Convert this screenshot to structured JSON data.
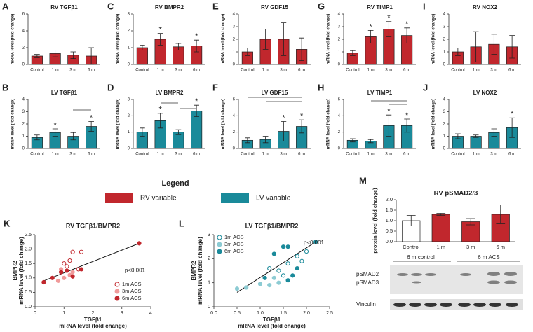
{
  "chart_data": [
    {
      "type": "bar",
      "panel": "A",
      "title": "RV TGFβ1",
      "ylabel": "mRNA level (fold change)",
      "categories": [
        "Control",
        "1 m",
        "3 m",
        "6 m"
      ],
      "values": [
        1.0,
        1.3,
        1.1,
        1.0
      ],
      "errors": [
        0.2,
        0.4,
        0.4,
        1.0
      ],
      "significance": [
        null,
        null,
        null,
        null
      ],
      "color": "#c1272d",
      "ylim": [
        0,
        6
      ],
      "yticks": [
        0,
        2,
        4,
        6
      ]
    },
    {
      "type": "bar",
      "panel": "B",
      "title": "LV TGFβ1",
      "ylabel": "mRNA level (fold change)",
      "categories": [
        "Control",
        "1 m",
        "3 m",
        "6 m"
      ],
      "values": [
        0.9,
        1.3,
        1.0,
        1.8
      ],
      "errors": [
        0.2,
        0.3,
        0.3,
        0.4
      ],
      "significance": [
        null,
        "*",
        null,
        "*"
      ],
      "color": "#1a8a9a",
      "ylim": [
        0,
        4
      ],
      "yticks": [
        0,
        1,
        2,
        3,
        4
      ]
    },
    {
      "type": "bar",
      "panel": "C",
      "title": "RV BMPR2",
      "ylabel": "mRNA level (fold change)",
      "categories": [
        "Control",
        "1 m",
        "3 m",
        "6 m"
      ],
      "values": [
        1.0,
        1.5,
        1.05,
        1.1
      ],
      "errors": [
        0.15,
        0.35,
        0.2,
        0.35
      ],
      "significance": [
        null,
        "*",
        null,
        "*"
      ],
      "color": "#c1272d",
      "ylim": [
        0,
        3
      ],
      "yticks": [
        0,
        1,
        2,
        3
      ]
    },
    {
      "type": "bar",
      "panel": "D",
      "title": "LV BMPR2",
      "ylabel": "mRNA level (fold change)",
      "categories": [
        "Control",
        "1 m",
        "3 m",
        "6 m"
      ],
      "values": [
        1.0,
        1.7,
        1.0,
        2.3
      ],
      "errors": [
        0.25,
        0.45,
        0.15,
        0.35
      ],
      "significance": [
        null,
        "*",
        null,
        "*"
      ],
      "color": "#1a8a9a",
      "ylim": [
        0,
        3
      ],
      "yticks": [
        0,
        1,
        2,
        3
      ]
    },
    {
      "type": "bar",
      "panel": "E",
      "title": "RV GDF15",
      "ylabel": "mRNA level (fold change)",
      "categories": [
        "Control",
        "1 m",
        "3 m",
        "6 m"
      ],
      "values": [
        1.0,
        2.0,
        2.0,
        1.2
      ],
      "errors": [
        0.3,
        0.8,
        1.3,
        0.9
      ],
      "significance": [
        null,
        null,
        null,
        null
      ],
      "color": "#c1272d",
      "ylim": [
        0,
        4
      ],
      "yticks": [
        0,
        1,
        2,
        3,
        4
      ]
    },
    {
      "type": "bar",
      "panel": "F",
      "title": "LV GDF15",
      "ylabel": "mRNA level (fold change)",
      "categories": [
        "Control",
        "1 m",
        "3 m",
        "6 m"
      ],
      "values": [
        1.0,
        1.1,
        2.1,
        2.7
      ],
      "errors": [
        0.3,
        0.4,
        1.2,
        0.8
      ],
      "significance": [
        null,
        null,
        "*",
        "*"
      ],
      "color": "#1a8a9a",
      "ylim": [
        0,
        6
      ],
      "yticks": [
        0,
        2,
        4,
        6
      ]
    },
    {
      "type": "bar",
      "panel": "G",
      "title": "RV TIMP1",
      "ylabel": "mRNA level (fold change)",
      "categories": [
        "Control",
        "1 m",
        "3 m",
        "6 m"
      ],
      "values": [
        0.9,
        2.2,
        2.8,
        2.3
      ],
      "errors": [
        0.2,
        0.5,
        0.6,
        0.6
      ],
      "significance": [
        null,
        "*",
        "*",
        "*"
      ],
      "color": "#c1272d",
      "ylim": [
        0,
        4
      ],
      "yticks": [
        0,
        1,
        2,
        3,
        4
      ]
    },
    {
      "type": "bar",
      "panel": "H",
      "title": "LV TIMP1",
      "ylabel": "mRNA level (fold change)",
      "categories": [
        "Control",
        "1 m",
        "3 m",
        "6 m"
      ],
      "values": [
        1.0,
        0.9,
        2.8,
        2.8
      ],
      "errors": [
        0.2,
        0.2,
        1.3,
        0.8
      ],
      "significance": [
        null,
        null,
        "*",
        "*"
      ],
      "color": "#1a8a9a",
      "ylim": [
        0,
        6
      ],
      "yticks": [
        0,
        2,
        4,
        6
      ]
    },
    {
      "type": "bar",
      "panel": "I",
      "title": "RV NOX2",
      "ylabel": "mRNA level (fold change)",
      "categories": [
        "Control",
        "1 m",
        "3 m",
        "6 m"
      ],
      "values": [
        1.0,
        1.4,
        1.6,
        1.4
      ],
      "errors": [
        0.3,
        1.2,
        0.8,
        0.9
      ],
      "significance": [
        null,
        null,
        null,
        null
      ],
      "color": "#c1272d",
      "ylim": [
        0,
        4
      ],
      "yticks": [
        0,
        1,
        2,
        3,
        4
      ]
    },
    {
      "type": "bar",
      "panel": "J",
      "title": "LV NOX2",
      "ylabel": "mRNA level (fold change)",
      "categories": [
        "Control",
        "1 m",
        "3 m",
        "6 m"
      ],
      "values": [
        1.0,
        1.0,
        1.3,
        1.7
      ],
      "errors": [
        0.2,
        0.1,
        0.3,
        0.8
      ],
      "significance": [
        null,
        null,
        null,
        "*"
      ],
      "color": "#1a8a9a",
      "ylim": [
        0,
        4
      ],
      "yticks": [
        0,
        1,
        2,
        3,
        4
      ]
    },
    {
      "type": "scatter",
      "panel": "K",
      "title": "RV TGFβ1/BMPR2",
      "xlabel": "TGFβ1",
      "xlabel2": "mRNA level (fold change)",
      "ylabel": "BMPR2",
      "ylabel2": "mRNA level (fold change)",
      "annotation": "p<0.001",
      "xlim": [
        0,
        4
      ],
      "xticks": [
        0,
        1,
        2,
        3,
        4
      ],
      "ylim": [
        0,
        2.5
      ],
      "yticks": [
        {
          "value": 0,
          "label": "0.0"
        },
        {
          "value": 0.5,
          "label": "0.5"
        },
        {
          "value": 1,
          "label": "1.0"
        },
        {
          "value": 1.5,
          "label": "1.5"
        },
        {
          "value": 2,
          "label": "2.0"
        },
        {
          "value": 2.5,
          "label": "2.5"
        }
      ],
      "series": [
        {
          "name": "1m ACS",
          "color": "#c1272d",
          "hollow": true,
          "x": [
            1.0,
            1.3,
            1.5,
            1.2,
            1.6,
            1.1,
            0.9
          ],
          "y": [
            1.5,
            1.9,
            1.3,
            1.6,
            1.9,
            1.4,
            1.2
          ]
        },
        {
          "name": "3m ACS",
          "color": "#f09a9a",
          "hollow": false,
          "x": [
            0.8,
            1.0,
            1.2,
            1.3,
            0.9
          ],
          "y": [
            0.9,
            1.0,
            1.1,
            1.2,
            1.3
          ]
        },
        {
          "name": "6m ACS",
          "color": "#c1272d",
          "hollow": false,
          "x": [
            0.3,
            0.6,
            1.1,
            1.3,
            0.9,
            1.6,
            3.6
          ],
          "y": [
            0.85,
            1.0,
            1.25,
            1.05,
            1.2,
            1.3,
            2.2
          ]
        }
      ],
      "fit": {
        "x": [
          0.3,
          3.6
        ],
        "y": [
          0.9,
          2.2
        ]
      },
      "legend": "lower right"
    },
    {
      "type": "scatter",
      "panel": "L",
      "title": "LV TGFβ1/BMPR2",
      "xlabel": "TGFβ1",
      "xlabel2": "mRNA level (fold change)",
      "ylabel": "BMPR2",
      "ylabel2": "mRNA level (fold change)",
      "annotation": "p<0.001",
      "xlim": [
        0,
        2.5
      ],
      "xticks": [
        {
          "value": 0,
          "label": "0.0"
        },
        {
          "value": 0.5,
          "label": "0.5"
        },
        {
          "value": 1,
          "label": "1.0"
        },
        {
          "value": 1.5,
          "label": "1.5"
        },
        {
          "value": 2,
          "label": "2.0"
        },
        {
          "value": 2.5,
          "label": "2.5"
        }
      ],
      "ylim": [
        0,
        3
      ],
      "yticks": [
        0,
        1,
        2,
        3
      ],
      "series": [
        {
          "name": "1m ACS",
          "color": "#1a8a9a",
          "hollow": true,
          "x": [
            1.4,
            1.6,
            1.8,
            1.9,
            2.0,
            1.5,
            1.2
          ],
          "y": [
            1.5,
            1.8,
            2.1,
            1.9,
            2.3,
            1.3,
            1.6
          ]
        },
        {
          "name": "3m ACS",
          "color": "#8ccbd3",
          "hollow": false,
          "x": [
            0.5,
            0.7,
            1.0,
            1.2,
            1.3,
            1.4
          ],
          "y": [
            0.75,
            0.8,
            0.95,
            0.9,
            1.2,
            1.0
          ]
        },
        {
          "name": "6m ACS",
          "color": "#1a8a9a",
          "hollow": false,
          "x": [
            1.3,
            1.5,
            1.6,
            1.7,
            1.8,
            2.2,
            1.1,
            1.6
          ],
          "y": [
            2.2,
            2.5,
            1.1,
            1.3,
            1.6,
            2.7,
            1.2,
            2.5
          ]
        }
      ],
      "fit": {
        "x": [
          0.5,
          2.2
        ],
        "y": [
          0.6,
          2.7
        ]
      },
      "legend": "upper left"
    },
    {
      "type": "bar",
      "panel": "M",
      "title": "RV pSMAD2/3",
      "ylabel": "protein level (fold change)",
      "categories": [
        "Control",
        "1 m",
        "3 m",
        "6 m"
      ],
      "values": [
        1.0,
        1.3,
        0.95,
        1.3
      ],
      "errors": [
        0.25,
        0.05,
        0.15,
        0.45
      ],
      "significance": [
        null,
        null,
        null,
        null
      ],
      "colors": [
        "#ffffff",
        "#c1272d",
        "#c1272d",
        "#c1272d"
      ],
      "ylim": [
        0,
        2
      ],
      "yticks": [
        {
          "value": 0,
          "label": "0.0"
        },
        {
          "value": 0.5,
          "label": "0.5"
        },
        {
          "value": 1,
          "label": "1.0"
        },
        {
          "value": 1.5,
          "label": "1.5"
        },
        {
          "value": 2,
          "label": "2.0"
        }
      ]
    }
  ],
  "legend": {
    "title": "Legend",
    "items": [
      {
        "name": "RV variable",
        "color": "#c1272d"
      },
      {
        "name": "LV variable",
        "color": "#1a8a9a"
      }
    ]
  },
  "blot": {
    "groups": [
      "6 m control",
      "6 m ACS"
    ],
    "bands": [
      "pSMAD2",
      "pSMAD3",
      "Vinculin"
    ]
  }
}
